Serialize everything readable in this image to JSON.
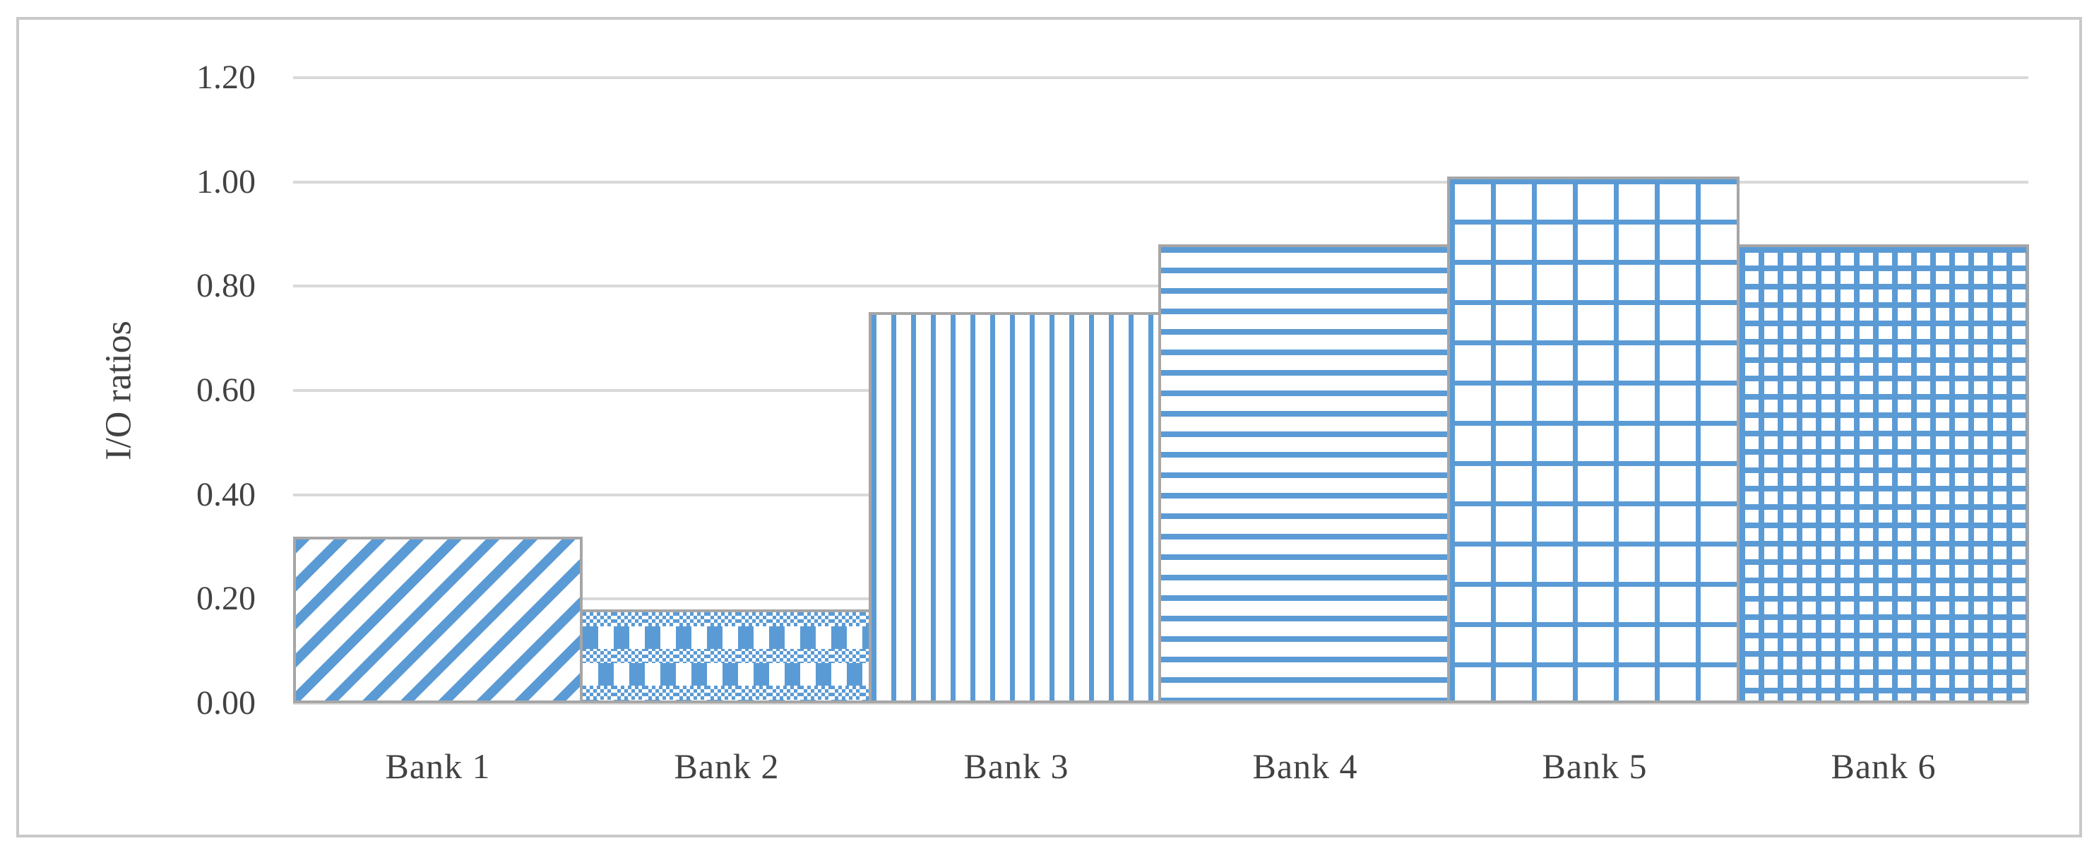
{
  "figure": {
    "background": "#ffffff",
    "border_color": "#c9c9c9"
  },
  "chart_data": {
    "type": "bar",
    "title": "",
    "categories": [
      "Bank 1",
      "Bank 2",
      "Bank 3",
      "Bank 4",
      "Bank 5",
      "Bank 6"
    ],
    "values": [
      0.32,
      0.18,
      0.75,
      0.88,
      1.01,
      0.88
    ],
    "xlabel": "",
    "ylabel": "I/O ratios",
    "ylim": [
      0,
      1.2
    ],
    "ytick_step": 0.2,
    "yticks": [
      "0.00",
      "0.20",
      "0.40",
      "0.60",
      "0.80",
      "1.00",
      "1.20"
    ],
    "ytick_values": [
      0.0,
      0.2,
      0.4,
      0.6,
      0.8,
      1.0,
      1.2
    ],
    "grid": "horizontal",
    "legend_position": "none",
    "bar_patterns": [
      "diagonal-stripe",
      "checker-weave",
      "vertical-lines",
      "horizontal-lines",
      "wide-grid",
      "fine-grid"
    ],
    "bar_color": "#5b9bd5",
    "bar_border_color": "#a6a6a6",
    "gridline_color": "#d9d9d9",
    "text_color": "#424242"
  }
}
